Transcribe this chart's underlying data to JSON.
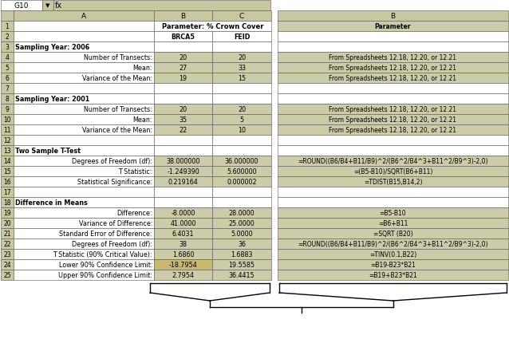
{
  "cell_ref": "G10",
  "col_hdr_bg": "#c8c8a0",
  "data_bg": "#cccca8",
  "white_bg": "#ffffff",
  "highlight_bg": "#c8b870",
  "border_color": "#555555",
  "left_rows": [
    {
      "row": 1,
      "A": "",
      "B": "Parameter: % Crown Cover",
      "C": "",
      "B_span": true,
      "A_bold": false
    },
    {
      "row": 2,
      "A": "",
      "B": "BRCA5",
      "C": "FEID",
      "B_span": false,
      "A_bold": false,
      "bc_bold": true
    },
    {
      "row": 3,
      "A": "Sampling Year: 2006",
      "B": "",
      "C": "",
      "B_span": false,
      "A_bold": true
    },
    {
      "row": 4,
      "A": "Number of Transects:",
      "B": "20",
      "C": "20",
      "B_span": false,
      "A_bold": false
    },
    {
      "row": 5,
      "A": "Mean:",
      "B": "27",
      "C": "33",
      "B_span": false,
      "A_bold": false
    },
    {
      "row": 6,
      "A": "Variance of the Mean:",
      "B": "19",
      "C": "15",
      "B_span": false,
      "A_bold": false
    },
    {
      "row": 7,
      "A": "",
      "B": "",
      "C": "",
      "B_span": false,
      "A_bold": false
    },
    {
      "row": 8,
      "A": "Sampling Year: 2001",
      "B": "",
      "C": "",
      "B_span": false,
      "A_bold": true
    },
    {
      "row": 9,
      "A": "Number of Transects:",
      "B": "20",
      "C": "20",
      "B_span": false,
      "A_bold": false
    },
    {
      "row": 10,
      "A": "Mean:",
      "B": "35",
      "C": "5",
      "B_span": false,
      "A_bold": false
    },
    {
      "row": 11,
      "A": "Variance of the Mean:",
      "B": "22",
      "C": "10",
      "B_span": false,
      "A_bold": false
    },
    {
      "row": 12,
      "A": "",
      "B": "",
      "C": "",
      "B_span": false,
      "A_bold": false
    },
    {
      "row": 13,
      "A": "Two Sample T-Test",
      "B": "",
      "C": "",
      "B_span": false,
      "A_bold": true
    },
    {
      "row": 14,
      "A": "Degrees of Freedom (df):",
      "B": "38.000000",
      "C": "36.000000",
      "B_span": false,
      "A_bold": false
    },
    {
      "row": 15,
      "A": "T Statistic:",
      "B": "-1.249390",
      "C": "5.600000",
      "B_span": false,
      "A_bold": false
    },
    {
      "row": 16,
      "A": "Statistical Significance:",
      "B": "0.219164",
      "C": "0.000002",
      "B_span": false,
      "A_bold": false
    },
    {
      "row": 17,
      "A": "",
      "B": "",
      "C": "",
      "B_span": false,
      "A_bold": false
    },
    {
      "row": 18,
      "A": "Difference in Means",
      "B": "",
      "C": "",
      "B_span": false,
      "A_bold": true
    },
    {
      "row": 19,
      "A": "Difference:",
      "B": "-8.0000",
      "C": "28.0000",
      "B_span": false,
      "A_bold": false
    },
    {
      "row": 20,
      "A": "Variance of Difference:",
      "B": "41.0000",
      "C": "25.0000",
      "B_span": false,
      "A_bold": false
    },
    {
      "row": 21,
      "A": "Standard Error of Difference:",
      "B": "6.4031",
      "C": "5.0000",
      "B_span": false,
      "A_bold": false
    },
    {
      "row": 22,
      "A": "Degrees of Freedom (df):",
      "B": "38",
      "C": "36",
      "B_span": false,
      "A_bold": false
    },
    {
      "row": 23,
      "A": "T Statistic (90% Critical Value):",
      "B": "1.6860",
      "C": "1.6883",
      "B_span": false,
      "A_bold": false
    },
    {
      "row": 24,
      "A": "Lower 90% Confidence Limit:",
      "B": "-18.7954",
      "C": "19.5585",
      "B_span": false,
      "A_bold": false,
      "highlight": true
    },
    {
      "row": 25,
      "A": "Upper 90% Confidence Limit:",
      "B": "2.7954",
      "C": "36.4415",
      "B_span": false,
      "A_bold": false
    }
  ],
  "right_rows": [
    {
      "row": 1,
      "B": "Parameter",
      "bold": true
    },
    {
      "row": 2,
      "B": ""
    },
    {
      "row": 3,
      "B": ""
    },
    {
      "row": 4,
      "B": "From Spreadsheets 12.18, 12.20, or 12.21"
    },
    {
      "row": 5,
      "B": "From Spreadsheets 12.18, 12.20, or 12.21"
    },
    {
      "row": 6,
      "B": "From Spreadsheets 12.18, 12.20, or 12.21"
    },
    {
      "row": 7,
      "B": ""
    },
    {
      "row": 8,
      "B": ""
    },
    {
      "row": 9,
      "B": "From Spreadsheets 12.18, 12.20, or 12.21"
    },
    {
      "row": 10,
      "B": "From Spreadsheets 12.18, 12.20, or 12.21"
    },
    {
      "row": 11,
      "B": "From Spreadsheets 12.18, 12.20, or 12.21"
    },
    {
      "row": 12,
      "B": ""
    },
    {
      "row": 13,
      "B": ""
    },
    {
      "row": 14,
      "B": "=ROUND((B6/B4+B11/B9)^2/(B6^2/B4^3+B11^2/B9^3)-2,0)"
    },
    {
      "row": 15,
      "B": "=(B5-B10)/SQRT(B6+B11)"
    },
    {
      "row": 16,
      "B": "=TDIST(B15,B14,2)"
    },
    {
      "row": 17,
      "B": ""
    },
    {
      "row": 18,
      "B": ""
    },
    {
      "row": 19,
      "B": "=B5-B10"
    },
    {
      "row": 20,
      "B": "=B6+B11"
    },
    {
      "row": 21,
      "B": "=SQRT (B20)"
    },
    {
      "row": 22,
      "B": "=ROUND((B6/B4+B11/B9)^2/(B6^2/B4^3+B11^2/B9^3)-2,0)"
    },
    {
      "row": 23,
      "B": "=TINV(0.1,B22)"
    },
    {
      "row": 24,
      "B": "=B19-B23*B21"
    },
    {
      "row": 25,
      "B": "=B19+B23*B21"
    }
  ]
}
